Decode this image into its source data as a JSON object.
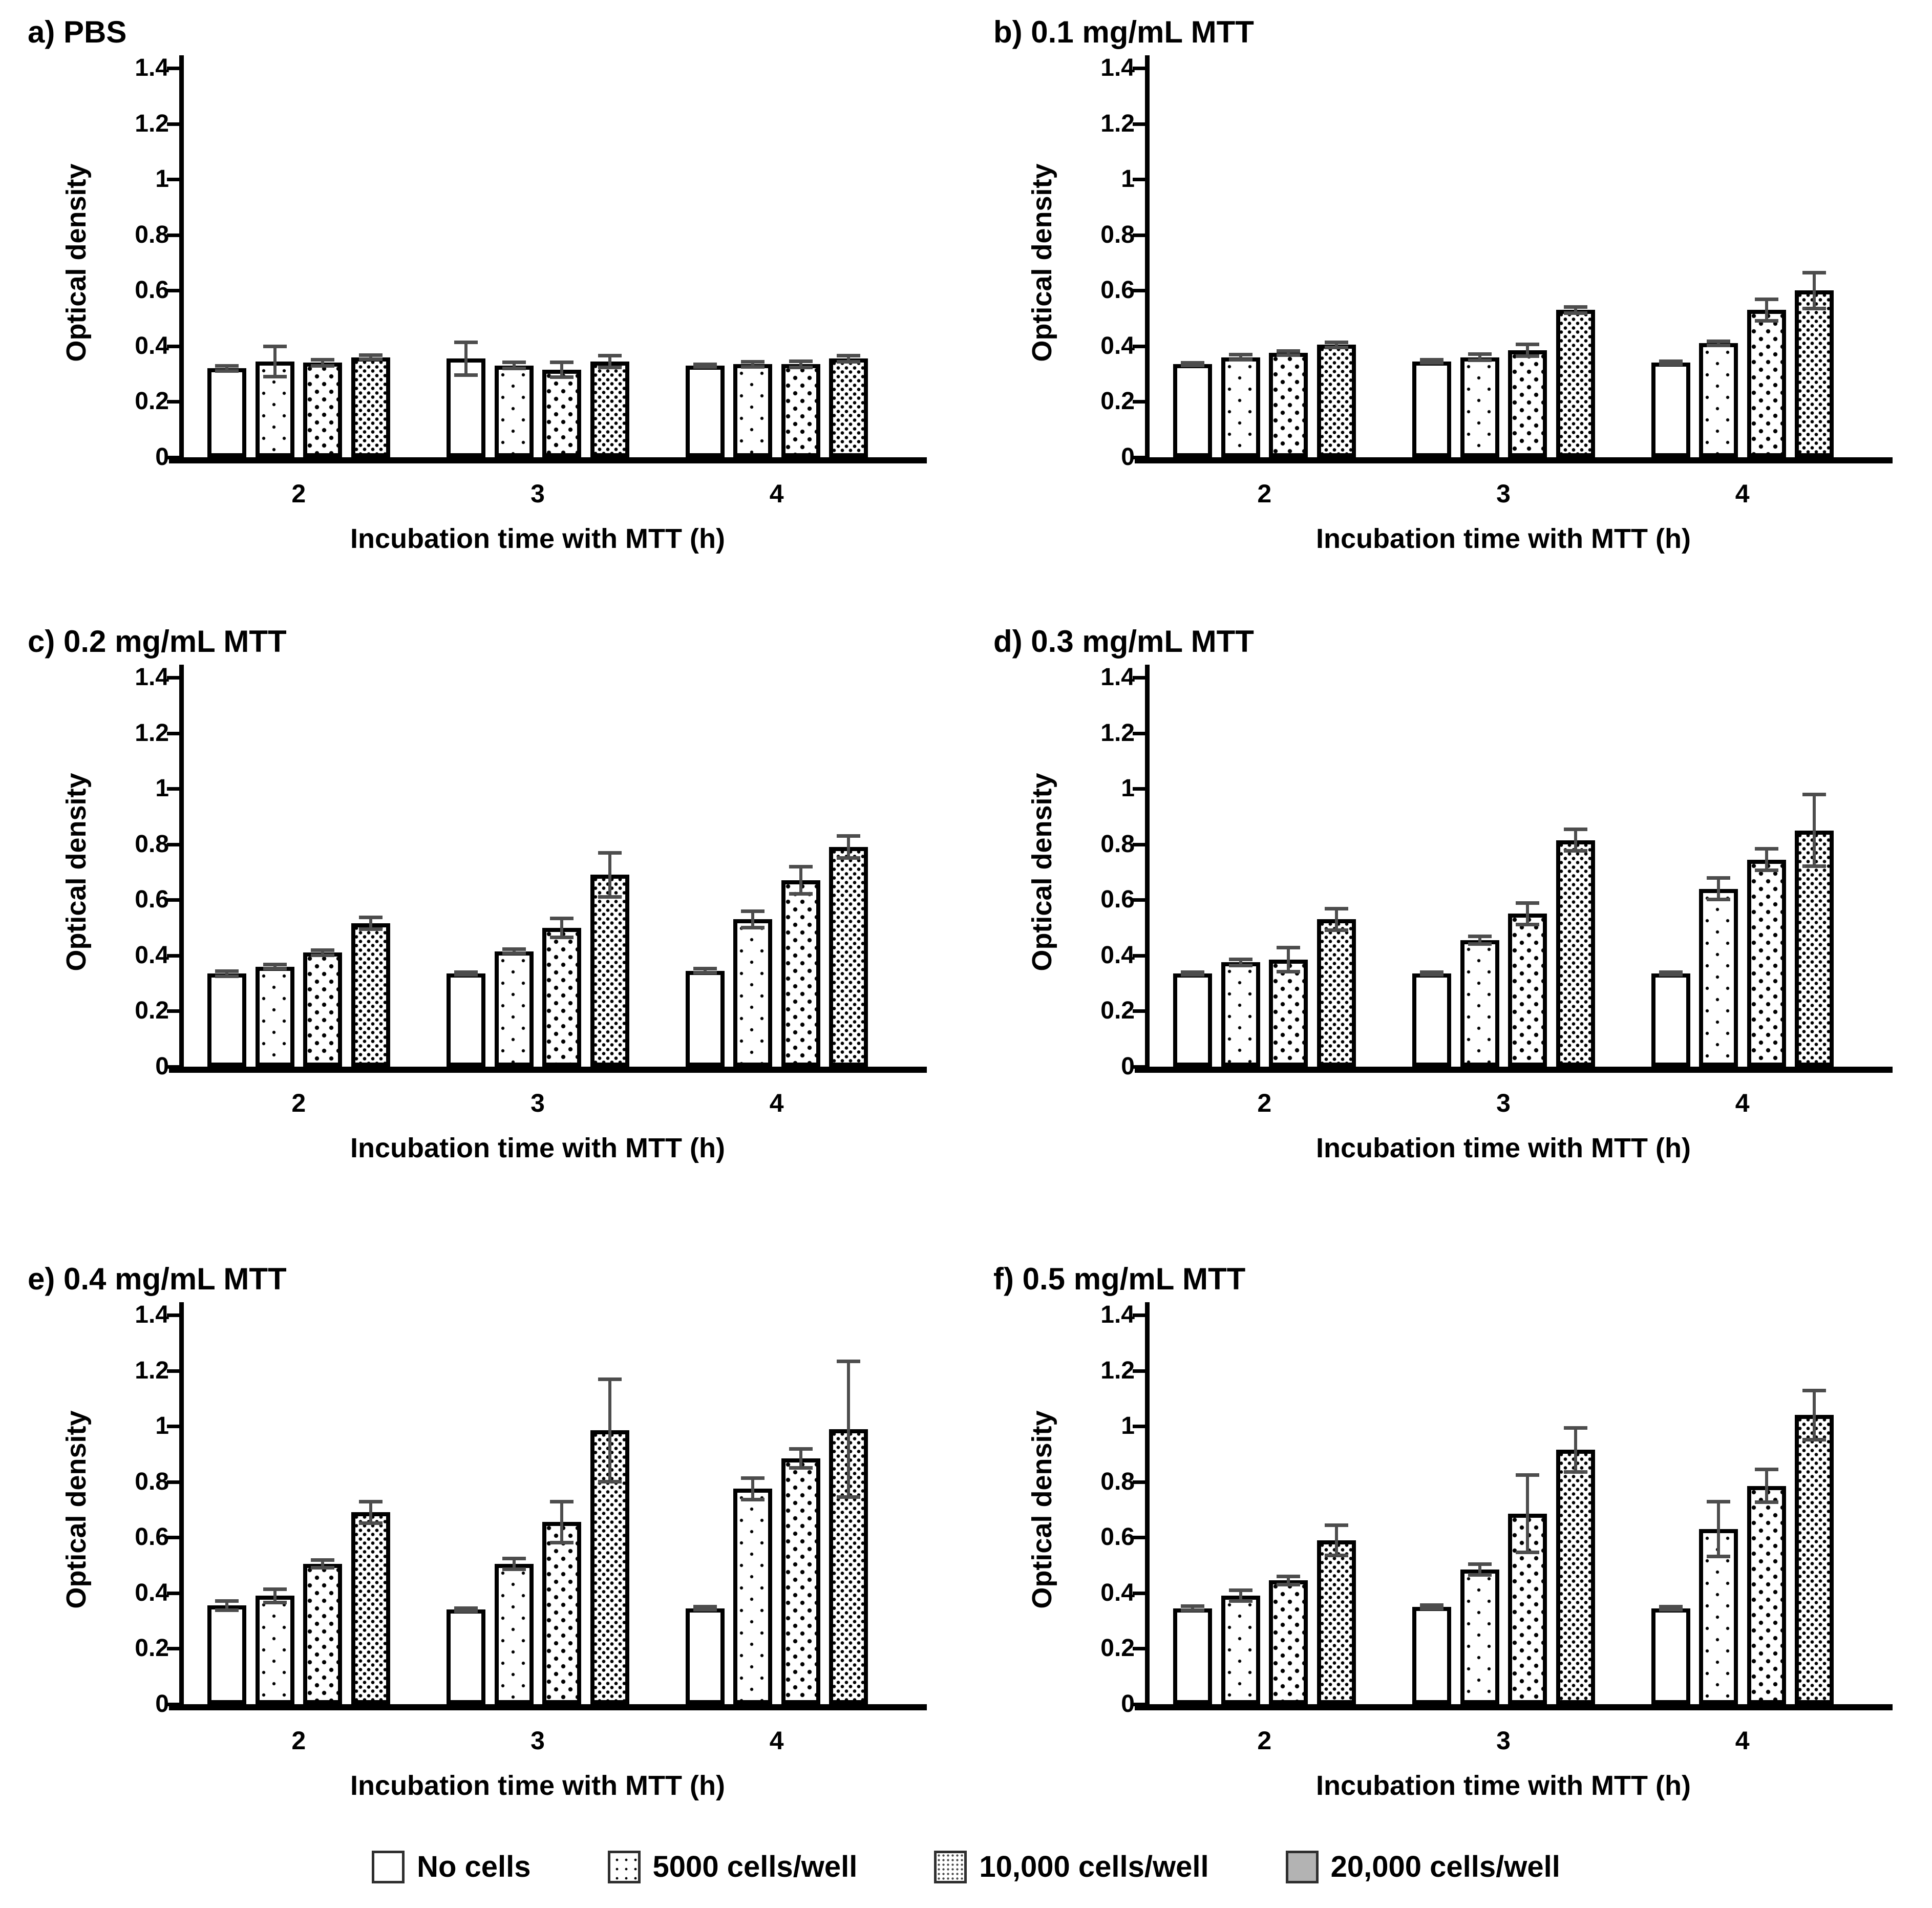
{
  "axis": {
    "y_ticks": [
      "0",
      "0.2",
      "0.4",
      "0.6",
      "0.8",
      "1",
      "1.2",
      "1.4"
    ],
    "y_max": 1.4,
    "categories": [
      "2",
      "3",
      "4"
    ]
  },
  "legend": {
    "items": [
      {
        "label": "No cells"
      },
      {
        "label": "5000 cells/well"
      },
      {
        "label": "10,000 cells/well"
      },
      {
        "label": "20,000 cells/well"
      }
    ]
  },
  "colors": {
    "bar_outline": "#000000",
    "error_bar": "#4d4d4d",
    "legend_gray_swatch": "#b3b3b3"
  },
  "chart_data": [
    {
      "type": "bar",
      "title": "a) PBS",
      "xlabel": "Incubation time with MTT (h)",
      "ylabel": "Optical density",
      "ylim": [
        0,
        1.4
      ],
      "categories": [
        "2",
        "3",
        "4"
      ],
      "series": [
        {
          "name": "No cells",
          "values": [
            0.32,
            0.355,
            0.33
          ],
          "errors": [
            0.01,
            0.06,
            0.005
          ]
        },
        {
          "name": "5000 cells/well",
          "values": [
            0.345,
            0.33,
            0.335
          ],
          "errors": [
            0.055,
            0.012,
            0.01
          ]
        },
        {
          "name": "10,000 cells/well",
          "values": [
            0.34,
            0.315,
            0.335
          ],
          "errors": [
            0.012,
            0.028,
            0.012
          ]
        },
        {
          "name": "20,000 cells/well",
          "values": [
            0.36,
            0.345,
            0.355
          ],
          "errors": [
            0.008,
            0.022,
            0.012
          ]
        }
      ]
    },
    {
      "type": "bar",
      "title": "b) 0.1 mg/mL MTT",
      "xlabel": "Incubation time with MTT (h)",
      "ylabel": "Optical density",
      "ylim": [
        0,
        1.4
      ],
      "categories": [
        "2",
        "3",
        "4"
      ],
      "series": [
        {
          "name": "No cells",
          "values": [
            0.335,
            0.345,
            0.34
          ],
          "errors": [
            0.006,
            0.006,
            0.006
          ]
        },
        {
          "name": "5000 cells/well",
          "values": [
            0.36,
            0.36,
            0.41
          ],
          "errors": [
            0.01,
            0.012,
            0.008
          ]
        },
        {
          "name": "10,000 cells/well",
          "values": [
            0.375,
            0.385,
            0.53
          ],
          "errors": [
            0.008,
            0.022,
            0.04
          ]
        },
        {
          "name": "20,000 cells/well",
          "values": [
            0.405,
            0.53,
            0.6
          ],
          "errors": [
            0.01,
            0.012,
            0.065
          ]
        }
      ]
    },
    {
      "type": "bar",
      "title": "c) 0.2 mg/mL MTT",
      "xlabel": "Incubation time with MTT (h)",
      "ylabel": "Optical density",
      "ylim": [
        0,
        1.4
      ],
      "categories": [
        "2",
        "3",
        "4"
      ],
      "series": [
        {
          "name": "No cells",
          "values": [
            0.335,
            0.335,
            0.345
          ],
          "errors": [
            0.01,
            0.006,
            0.008
          ]
        },
        {
          "name": "5000 cells/well",
          "values": [
            0.36,
            0.415,
            0.53
          ],
          "errors": [
            0.008,
            0.008,
            0.03
          ]
        },
        {
          "name": "10,000 cells/well",
          "values": [
            0.41,
            0.5,
            0.67
          ],
          "errors": [
            0.01,
            0.035,
            0.05
          ]
        },
        {
          "name": "20,000 cells/well",
          "values": [
            0.515,
            0.69,
            0.79
          ],
          "errors": [
            0.022,
            0.08,
            0.04
          ]
        }
      ]
    },
    {
      "type": "bar",
      "title": "d) 0.3 mg/mL MTT",
      "xlabel": "Incubation time with MTT (h)",
      "ylabel": "Optical density",
      "ylim": [
        0,
        1.4
      ],
      "categories": [
        "2",
        "3",
        "4"
      ],
      "series": [
        {
          "name": "No cells",
          "values": [
            0.335,
            0.335,
            0.335
          ],
          "errors": [
            0.006,
            0.006,
            0.006
          ]
        },
        {
          "name": "5000 cells/well",
          "values": [
            0.375,
            0.455,
            0.64
          ],
          "errors": [
            0.012,
            0.015,
            0.04
          ]
        },
        {
          "name": "10,000 cells/well",
          "values": [
            0.385,
            0.55,
            0.745
          ],
          "errors": [
            0.045,
            0.04,
            0.04
          ]
        },
        {
          "name": "20,000 cells/well",
          "values": [
            0.53,
            0.815,
            0.85
          ],
          "errors": [
            0.04,
            0.04,
            0.13
          ]
        }
      ]
    },
    {
      "type": "bar",
      "title": "e) 0.4 mg/mL MTT",
      "xlabel": "Incubation time with MTT (h)",
      "ylabel": "Optical density",
      "ylim": [
        0,
        1.4
      ],
      "categories": [
        "2",
        "3",
        "4"
      ],
      "series": [
        {
          "name": "No cells",
          "values": [
            0.355,
            0.34,
            0.345
          ],
          "errors": [
            0.018,
            0.006,
            0.006
          ]
        },
        {
          "name": "5000 cells/well",
          "values": [
            0.39,
            0.505,
            0.775
          ],
          "errors": [
            0.025,
            0.02,
            0.04
          ]
        },
        {
          "name": "10,000 cells/well",
          "values": [
            0.505,
            0.655,
            0.885
          ],
          "errors": [
            0.015,
            0.075,
            0.035
          ]
        },
        {
          "name": "20,000 cells/well",
          "values": [
            0.69,
            0.985,
            0.99
          ],
          "errors": [
            0.04,
            0.185,
            0.245
          ]
        }
      ]
    },
    {
      "type": "bar",
      "title": "f) 0.5 mg/mL MTT",
      "xlabel": "Incubation time with MTT (h)",
      "ylabel": "Optical density",
      "ylim": [
        0,
        1.4
      ],
      "categories": [
        "2",
        "3",
        "4"
      ],
      "series": [
        {
          "name": "No cells",
          "values": [
            0.345,
            0.35,
            0.345
          ],
          "errors": [
            0.008,
            0.008,
            0.006
          ]
        },
        {
          "name": "5000 cells/well",
          "values": [
            0.39,
            0.485,
            0.63
          ],
          "errors": [
            0.02,
            0.02,
            0.1
          ]
        },
        {
          "name": "10,000 cells/well",
          "values": [
            0.445,
            0.685,
            0.785
          ],
          "errors": [
            0.015,
            0.14,
            0.06
          ]
        },
        {
          "name": "20,000 cells/well",
          "values": [
            0.59,
            0.915,
            1.04
          ],
          "errors": [
            0.055,
            0.08,
            0.09
          ]
        }
      ]
    }
  ]
}
